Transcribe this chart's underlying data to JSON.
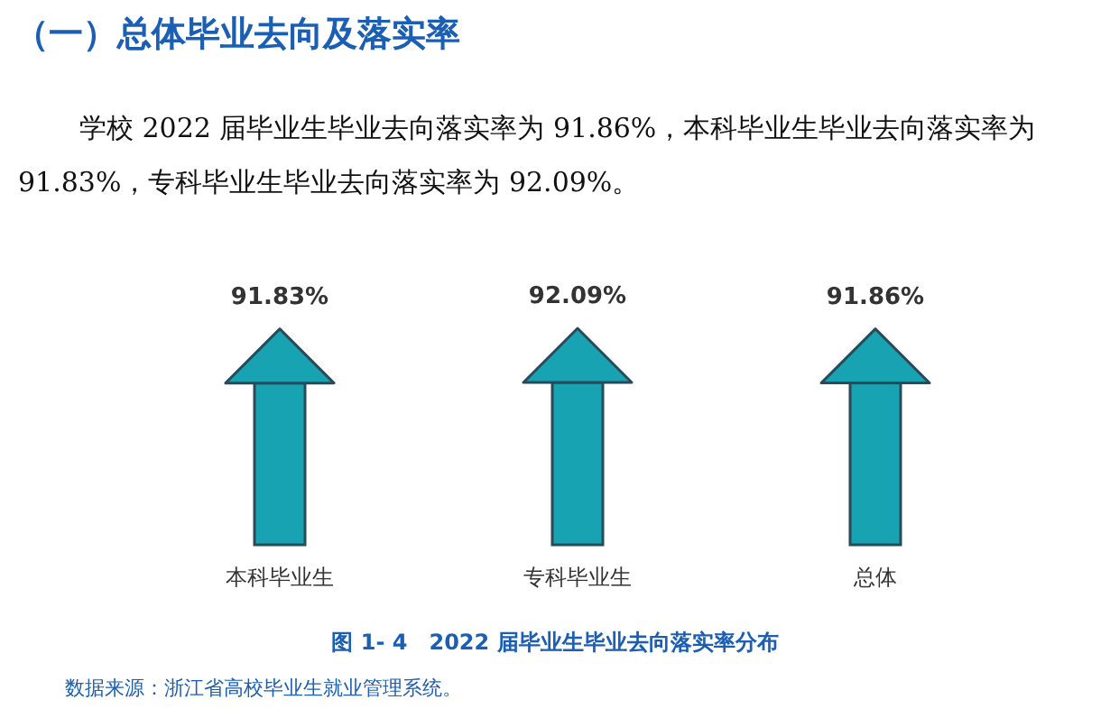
{
  "chart_data": {
    "type": "bar",
    "title": "（一）总体毕业去向及落实率",
    "subtitle": "学校 2022 届毕业生毕业去向落实率为 91.86%，本科毕业生毕业去向落实率为 91.83%，专科毕业生毕业去向落实率为 92.09%。",
    "categories": [
      "本科毕业生",
      "专科毕业生",
      "总体"
    ],
    "values": [
      91.83,
      92.09,
      91.86
    ],
    "value_labels": [
      "91.83%",
      "92.09%",
      "91.86%"
    ],
    "color": "#17a3b2",
    "annotations": [
      "图 1- 4　2022 届毕业生毕业去向落实率分布",
      "数据来源：浙江省高校毕业生就业管理系统。"
    ]
  }
}
